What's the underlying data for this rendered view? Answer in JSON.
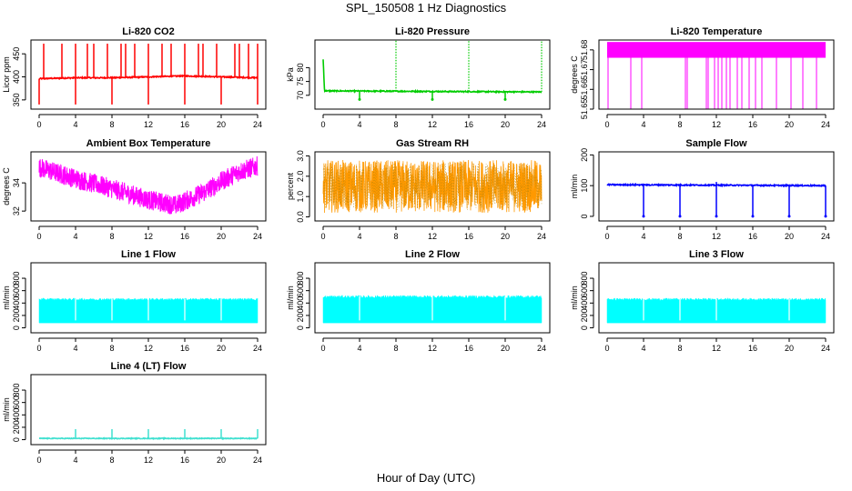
{
  "title": "SPL_150508  1 Hz Diagnostics",
  "xlabel": "Hour of Day (UTC)",
  "colors": {
    "co2": "#ff0000",
    "pressure": "#00cc00",
    "li_temp": "#ff00ff",
    "box_temp": "#ff00ff",
    "rh": "#ff9900",
    "rh_edge": "#b8860b",
    "sample_flow": "#0000ff",
    "line_flow": "#00ffff",
    "line4_flow": "#40e0d0"
  },
  "chart_data": [
    {
      "type": "line",
      "title": "Li-820 CO2",
      "ylabel": "Licor ppm",
      "xlim": [
        0,
        24
      ],
      "xticks": [
        "0",
        "4",
        "8",
        "12",
        "16",
        "20",
        "24"
      ],
      "ylim": [
        330,
        480
      ],
      "yticks": [
        350,
        400,
        450
      ],
      "series": [
        {
          "baseline": [
            [
              0,
              396
            ],
            [
              4,
              398
            ],
            [
              8,
              398
            ],
            [
              12,
              400
            ],
            [
              16,
              402
            ],
            [
              20,
              400
            ],
            [
              24,
              398
            ]
          ],
          "spike_hours": [
            0.5,
            2.5,
            4,
            5.3,
            6,
            7.5,
            9,
            9.5,
            10.5,
            12,
            13.5,
            14.5,
            16,
            17.5,
            18,
            19.5,
            21.5,
            22,
            23,
            24
          ],
          "spike_peak": 472,
          "dip_hours": [
            0,
            4,
            8,
            12,
            16,
            20,
            24
          ],
          "dip_min": 340
        }
      ]
    },
    {
      "type": "line",
      "title": "Li-820 Pressure",
      "ylabel": "kPa",
      "xlim": [
        0,
        24
      ],
      "xticks": [
        "0",
        "4",
        "8",
        "12",
        "16",
        "20",
        "24"
      ],
      "ylim": [
        65,
        90
      ],
      "yticks": [
        70,
        75,
        80
      ],
      "series": [
        {
          "baseline": [
            [
              0,
              71.6
            ],
            [
              24,
              71.2
            ]
          ],
          "start_value": 83,
          "spike_hours": [
            8,
            16,
            24
          ],
          "spike_peak": 90,
          "dip_hours": [
            4,
            12,
            20
          ],
          "dip_min": 68.5
        }
      ]
    },
    {
      "type": "line",
      "title": "Li-820 Temperature",
      "ylabel": "degrees C",
      "xlim": [
        0,
        24
      ],
      "xticks": [
        "0",
        "4",
        "8",
        "12",
        "16",
        "20",
        "24"
      ],
      "ylim": [
        51.65,
        51.685
      ],
      "yticks": [
        51.65,
        51.66,
        51.67,
        51.68
      ],
      "ytick_labels": [
        "51.65",
        "51.66",
        "51.67",
        "51.68"
      ],
      "series": [
        {
          "band": [
            51.676,
            51.684
          ],
          "dip_value": 51.65,
          "dip_hours": [
            0.1,
            2.6,
            3.8,
            8.6,
            8.8,
            10.9,
            11.1,
            11.8,
            12.2,
            12.6,
            13.1,
            13.5,
            14.3,
            14.8,
            15.6,
            16.3,
            17,
            18.6,
            20.2,
            21.5,
            23
          ]
        }
      ]
    },
    {
      "type": "line",
      "title": "Ambient Box Temperature",
      "ylabel": "degrees C",
      "xlim": [
        0,
        24
      ],
      "xticks": [
        "0",
        "4",
        "8",
        "12",
        "16",
        "20",
        "24"
      ],
      "ylim": [
        31.3,
        36.2
      ],
      "yticks": [
        32,
        34
      ],
      "series": [
        {
          "mean": [
            [
              0,
              35.1
            ],
            [
              4,
              34.3
            ],
            [
              8,
              33.6
            ],
            [
              12,
              32.8
            ],
            [
              15,
              32.4
            ],
            [
              18,
              33.3
            ],
            [
              20,
              34.1
            ],
            [
              22,
              34.8
            ],
            [
              24,
              35.2
            ]
          ],
          "band_halfwidth": 0.7
        }
      ]
    },
    {
      "type": "line",
      "title": "Gas Stream RH",
      "ylabel": "percent",
      "xlim": [
        0,
        24
      ],
      "xticks": [
        "0",
        "4",
        "8",
        "12",
        "16",
        "20",
        "24"
      ],
      "ylim": [
        -0.2,
        3.2
      ],
      "yticks": [
        0.0,
        1.0,
        2.0,
        3.0
      ],
      "ytick_labels": [
        "0.0",
        "1.0",
        "2.0",
        "3.0"
      ],
      "series": [
        {
          "mean": 1.5,
          "band_halfwidth": 1.3
        }
      ]
    },
    {
      "type": "line",
      "title": "Sample Flow",
      "ylabel": "ml/min",
      "xlim": [
        0,
        24
      ],
      "xticks": [
        "0",
        "4",
        "8",
        "12",
        "16",
        "20",
        "24"
      ],
      "ylim": [
        -15,
        210
      ],
      "yticks": [
        0,
        100,
        200
      ],
      "series": [
        {
          "baseline": [
            [
              0,
              103
            ],
            [
              24,
              100
            ]
          ],
          "spike_hours": [
            12
          ],
          "spike_peak": 112,
          "dip_hours": [
            4,
            8,
            12,
            16,
            20,
            24
          ],
          "dip_min": 0
        }
      ]
    },
    {
      "type": "line",
      "title": "Line 1 Flow",
      "ylabel": "ml/min",
      "xlim": [
        0,
        24
      ],
      "xticks": [
        "0",
        "4",
        "8",
        "12",
        "16",
        "20",
        "24"
      ],
      "ylim": [
        -80,
        1050
      ],
      "yticks": [
        0,
        200,
        400,
        600,
        800
      ],
      "series": [
        {
          "band": [
            80,
            460
          ],
          "gap_hours": [
            4,
            8,
            12,
            16,
            20,
            24
          ],
          "top_wiggle": 20
        }
      ]
    },
    {
      "type": "line",
      "title": "Line 2 Flow",
      "ylabel": "ml/min",
      "xlim": [
        0,
        24
      ],
      "xticks": [
        "0",
        "4",
        "8",
        "12",
        "16",
        "20",
        "24"
      ],
      "ylim": [
        -80,
        1050
      ],
      "yticks": [
        0,
        200,
        400,
        600,
        800
      ],
      "series": [
        {
          "band": [
            80,
            500
          ],
          "gap_hours": [
            4,
            12,
            20
          ],
          "top_wiggle": 25
        }
      ]
    },
    {
      "type": "line",
      "title": "Line 3 Flow",
      "ylabel": "ml/min",
      "xlim": [
        0,
        24
      ],
      "xticks": [
        "0",
        "4",
        "8",
        "12",
        "16",
        "20",
        "24"
      ],
      "ylim": [
        -80,
        1050
      ],
      "yticks": [
        0,
        200,
        400,
        600,
        800
      ],
      "series": [
        {
          "band": [
            80,
            460
          ],
          "gap_hours": [
            4,
            8,
            12,
            20
          ],
          "top_wiggle": 20
        }
      ]
    },
    {
      "type": "line",
      "title": "Line 4 (LT) Flow",
      "ylabel": "ml/min",
      "xlim": [
        0,
        24
      ],
      "xticks": [
        "0",
        "4",
        "8",
        "12",
        "16",
        "20",
        "24"
      ],
      "ylim": [
        -80,
        1050
      ],
      "yticks": [
        0,
        200,
        400,
        600,
        800
      ],
      "series": [
        {
          "baseline": [
            [
              0,
              20
            ],
            [
              24,
              20
            ]
          ],
          "spike_hours": [
            4,
            8,
            12,
            16,
            20,
            24
          ],
          "spike_peak": 170,
          "band_halfwidth": 6
        }
      ]
    }
  ]
}
